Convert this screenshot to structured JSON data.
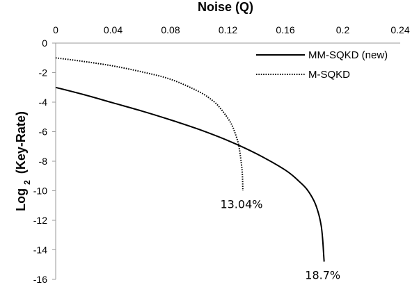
{
  "chart_data": {
    "type": "line",
    "title": "",
    "xlabel": "Noise (Q)",
    "ylabel": "Log2 (Key-Rate)",
    "ylabel_main": "Log",
    "ylabel_sub": "2",
    "ylabel_rest": "(Key-Rate)",
    "xlim": [
      0,
      0.24
    ],
    "ylim": [
      -16,
      0
    ],
    "x_axis_position": "top",
    "xticks": [
      0,
      0.04,
      0.08,
      0.12,
      0.16,
      0.2,
      0.24
    ],
    "xtick_labels": [
      "0",
      "0.04",
      "0.08",
      "0.12",
      "0.16",
      "0.2",
      "0.24"
    ],
    "yticks": [
      0,
      -2,
      -4,
      -6,
      -8,
      -10,
      -12,
      -14,
      -16
    ],
    "ytick_labels": [
      "0",
      "-2",
      "-4",
      "-6",
      "-8",
      "-10",
      "-12",
      "-14",
      "-16"
    ],
    "grid": false,
    "legend_position": "top-right",
    "series": [
      {
        "name": "MM-SQKD (new)",
        "style": "solid",
        "color": "#000000",
        "x": [
          0,
          0.02,
          0.04,
          0.06,
          0.08,
          0.1,
          0.12,
          0.14,
          0.16,
          0.17,
          0.175,
          0.18,
          0.183,
          0.185,
          0.186,
          0.187
        ],
        "y": [
          -3.0,
          -3.5,
          -4.05,
          -4.6,
          -5.2,
          -5.85,
          -6.6,
          -7.5,
          -8.6,
          -9.4,
          -9.9,
          -10.7,
          -11.5,
          -12.4,
          -13.3,
          -14.8
        ]
      },
      {
        "name": "M-SQKD",
        "style": "dotted",
        "color": "#000000",
        "x": [
          0,
          0.02,
          0.04,
          0.06,
          0.08,
          0.1,
          0.11,
          0.115,
          0.12,
          0.123,
          0.125,
          0.127,
          0.128,
          0.129,
          0.13,
          0.1304
        ],
        "y": [
          -1.0,
          -1.25,
          -1.55,
          -1.95,
          -2.45,
          -3.3,
          -3.95,
          -4.45,
          -5.1,
          -5.6,
          -6.1,
          -6.7,
          -7.2,
          -7.9,
          -8.8,
          -10.0
        ]
      }
    ],
    "annotations": [
      {
        "text": "13.04%",
        "x": 0.1304,
        "y": -10
      },
      {
        "text": "18.7%",
        "x": 0.187,
        "y": -14.8
      }
    ]
  }
}
